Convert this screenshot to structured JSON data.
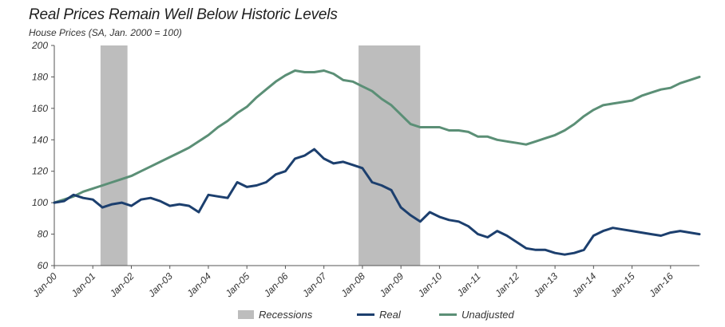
{
  "chart_data": {
    "type": "line",
    "title": "Real Prices Remain Well Below Historic Levels",
    "subtitle": "House Prices (SA, Jan. 2000 = 100)",
    "ylim": [
      60,
      200
    ],
    "y_ticks": [
      60,
      80,
      100,
      120,
      140,
      160,
      180,
      200
    ],
    "x_tick_labels": [
      "Jan-00",
      "Jan-01",
      "Jan-02",
      "Jan-03",
      "Jan-04",
      "Jan-05",
      "Jan-06",
      "Jan-07",
      "Jan-08",
      "Jan-09",
      "Jan-10",
      "Jan-11",
      "Jan-12",
      "Jan-13",
      "Jan-14",
      "Jan-15",
      "Jan-16"
    ],
    "x_range": [
      2000.0,
      2016.75
    ],
    "grid": false,
    "legend_position": "bottom",
    "recessions": [
      {
        "label": "Recessions",
        "start": 2001.2,
        "end": 2001.9
      },
      {
        "start": 2007.9,
        "end": 2009.5
      }
    ],
    "series": [
      {
        "name": "Real",
        "color": "#1c3f6e",
        "x": [
          2000.0,
          2000.25,
          2000.5,
          2000.75,
          2001.0,
          2001.25,
          2001.5,
          2001.75,
          2002.0,
          2002.25,
          2002.5,
          2002.75,
          2003.0,
          2003.25,
          2003.5,
          2003.75,
          2004.0,
          2004.25,
          2004.5,
          2004.75,
          2005.0,
          2005.25,
          2005.5,
          2005.75,
          2006.0,
          2006.25,
          2006.5,
          2006.75,
          2007.0,
          2007.25,
          2007.5,
          2007.75,
          2008.0,
          2008.25,
          2008.5,
          2008.75,
          2009.0,
          2009.25,
          2009.5,
          2009.75,
          2010.0,
          2010.25,
          2010.5,
          2010.75,
          2011.0,
          2011.25,
          2011.5,
          2011.75,
          2012.0,
          2012.25,
          2012.5,
          2012.75,
          2013.0,
          2013.25,
          2013.5,
          2013.75,
          2014.0,
          2014.25,
          2014.5,
          2014.75,
          2015.0,
          2015.25,
          2015.5,
          2015.75,
          2016.0,
          2016.25,
          2016.5,
          2016.75
        ],
        "values": [
          100,
          101,
          105,
          103,
          102,
          97,
          99,
          100,
          98,
          102,
          103,
          101,
          98,
          99,
          98,
          94,
          105,
          104,
          103,
          113,
          110,
          111,
          113,
          118,
          120,
          128,
          130,
          134,
          128,
          125,
          126,
          124,
          122,
          113,
          111,
          108,
          97,
          92,
          88,
          94,
          91,
          89,
          88,
          85,
          80,
          78,
          82,
          79,
          75,
          71,
          70,
          70,
          68,
          67,
          68,
          70,
          79,
          82,
          84,
          83,
          82,
          81,
          80,
          79,
          81,
          82,
          81,
          80
        ]
      },
      {
        "name": "Unadjusted",
        "color": "#5b8f76",
        "x": [
          2000.0,
          2000.25,
          2000.5,
          2000.75,
          2001.0,
          2001.25,
          2001.5,
          2001.75,
          2002.0,
          2002.25,
          2002.5,
          2002.75,
          2003.0,
          2003.25,
          2003.5,
          2003.75,
          2004.0,
          2004.25,
          2004.5,
          2004.75,
          2005.0,
          2005.25,
          2005.5,
          2005.75,
          2006.0,
          2006.25,
          2006.5,
          2006.75,
          2007.0,
          2007.25,
          2007.5,
          2007.75,
          2008.0,
          2008.25,
          2008.5,
          2008.75,
          2009.0,
          2009.25,
          2009.5,
          2009.75,
          2010.0,
          2010.25,
          2010.5,
          2010.75,
          2011.0,
          2011.25,
          2011.5,
          2011.75,
          2012.0,
          2012.25,
          2012.5,
          2012.75,
          2013.0,
          2013.25,
          2013.5,
          2013.75,
          2014.0,
          2014.25,
          2014.5,
          2014.75,
          2015.0,
          2015.25,
          2015.5,
          2015.75,
          2016.0,
          2016.25,
          2016.5,
          2016.75
        ],
        "values": [
          100,
          102,
          104,
          107,
          109,
          111,
          113,
          115,
          117,
          120,
          123,
          126,
          129,
          132,
          135,
          139,
          143,
          148,
          152,
          157,
          161,
          167,
          172,
          177,
          181,
          184,
          183,
          183,
          184,
          182,
          178,
          177,
          174,
          171,
          166,
          162,
          156,
          150,
          148,
          148,
          148,
          146,
          146,
          145,
          142,
          142,
          140,
          139,
          138,
          137,
          139,
          141,
          143,
          146,
          150,
          155,
          159,
          162,
          163,
          164,
          165,
          168,
          170,
          172,
          173,
          176,
          178,
          180
        ]
      }
    ]
  }
}
